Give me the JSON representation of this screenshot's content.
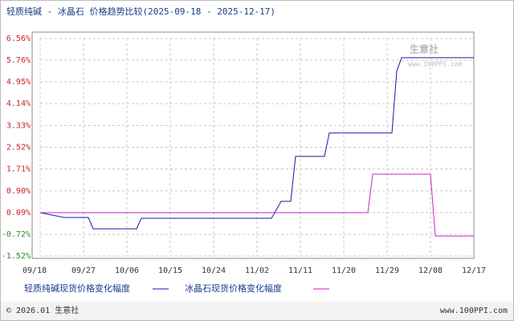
{
  "chart_data": {
    "type": "line",
    "title": "轻质纯碱 - 冰晶石 价格趋势比较(2025-09-18 - 2025-12-17)",
    "watermark": "生意社",
    "watermark_url": "www.100PPI.com",
    "footer_left": "© 2026.01 生意社",
    "footer_right": "www.100PPI.com",
    "xlim": [
      "09/18",
      "12/17"
    ],
    "xticks": [
      "09/18",
      "09/27",
      "10/06",
      "10/15",
      "10/24",
      "11/02",
      "11/11",
      "11/20",
      "11/29",
      "12/08",
      "12/17"
    ],
    "ylim": [
      -1.52,
      6.56
    ],
    "yticks": [
      {
        "value": 6.56,
        "label": "6.56%"
      },
      {
        "value": 5.76,
        "label": "5.76%"
      },
      {
        "value": 4.95,
        "label": "4.95%"
      },
      {
        "value": 4.14,
        "label": "4.14%"
      },
      {
        "value": 3.33,
        "label": "3.33%"
      },
      {
        "value": 2.52,
        "label": "2.52%"
      },
      {
        "value": 1.71,
        "label": "1.71%"
      },
      {
        "value": 0.9,
        "label": "0.90%"
      },
      {
        "value": 0.09,
        "label": "0.09%"
      },
      {
        "value": -0.72,
        "label": "-0.72%"
      },
      {
        "value": -1.52,
        "label": "-1.52%"
      }
    ],
    "grid": true,
    "series": [
      {
        "name": "轻质纯碱现货价格变化幅度",
        "color": "#1a1aa8",
        "x": [
          "09/18",
          "09/23",
          "09/28",
          "09/29",
          "10/08",
          "10/09",
          "11/05",
          "11/07",
          "11/09",
          "11/10",
          "11/16",
          "11/17",
          "11/30",
          "12/01",
          "12/02",
          "12/17"
        ],
        "values": [
          0.09,
          -0.09,
          -0.09,
          -0.51,
          -0.51,
          -0.12,
          -0.12,
          0.51,
          0.51,
          2.18,
          2.18,
          3.05,
          3.05,
          5.35,
          5.85,
          5.85
        ]
      },
      {
        "name": "冰晶石现货价格变化幅度",
        "color": "#cc22cc",
        "x": [
          "09/18",
          "11/25",
          "11/26",
          "12/08",
          "12/09",
          "12/17"
        ],
        "values": [
          0.09,
          0.09,
          1.52,
          1.52,
          -0.78,
          -0.78
        ]
      }
    ]
  }
}
